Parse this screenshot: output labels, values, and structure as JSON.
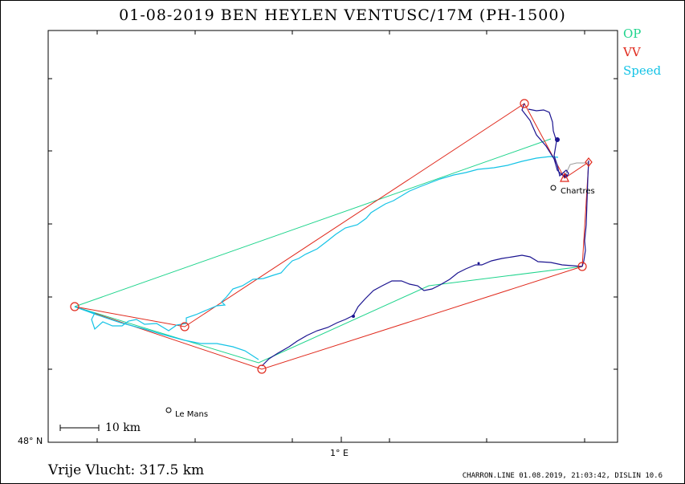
{
  "header": {
    "title": "01-08-2019   BEN HEYLEN   VENTUSC/17M (PH-1500)"
  },
  "legend": [
    {
      "label": "OP",
      "color": "#1ed48c"
    },
    {
      "label": "VV",
      "color": "#e0291c"
    },
    {
      "label": "Speed",
      "color": "#14c3e6"
    }
  ],
  "axes": {
    "lat_label": "48° N",
    "lon_label": "1° E"
  },
  "places": [
    {
      "name": "Chartres"
    },
    {
      "name": "Le Mans"
    }
  ],
  "scale": {
    "label": "10 km"
  },
  "summary": {
    "distance": "Vrije Vlucht:  317.5 km"
  },
  "footer": {
    "text": "CHARRON.LINE 01.08.2019, 21:03:42, DISLIN 10.6"
  },
  "colors": {
    "track": "#1b1490",
    "op": "#1ed48c",
    "vv": "#e0291c",
    "speed": "#14c3e6",
    "gray": "#9a9a9a"
  }
}
